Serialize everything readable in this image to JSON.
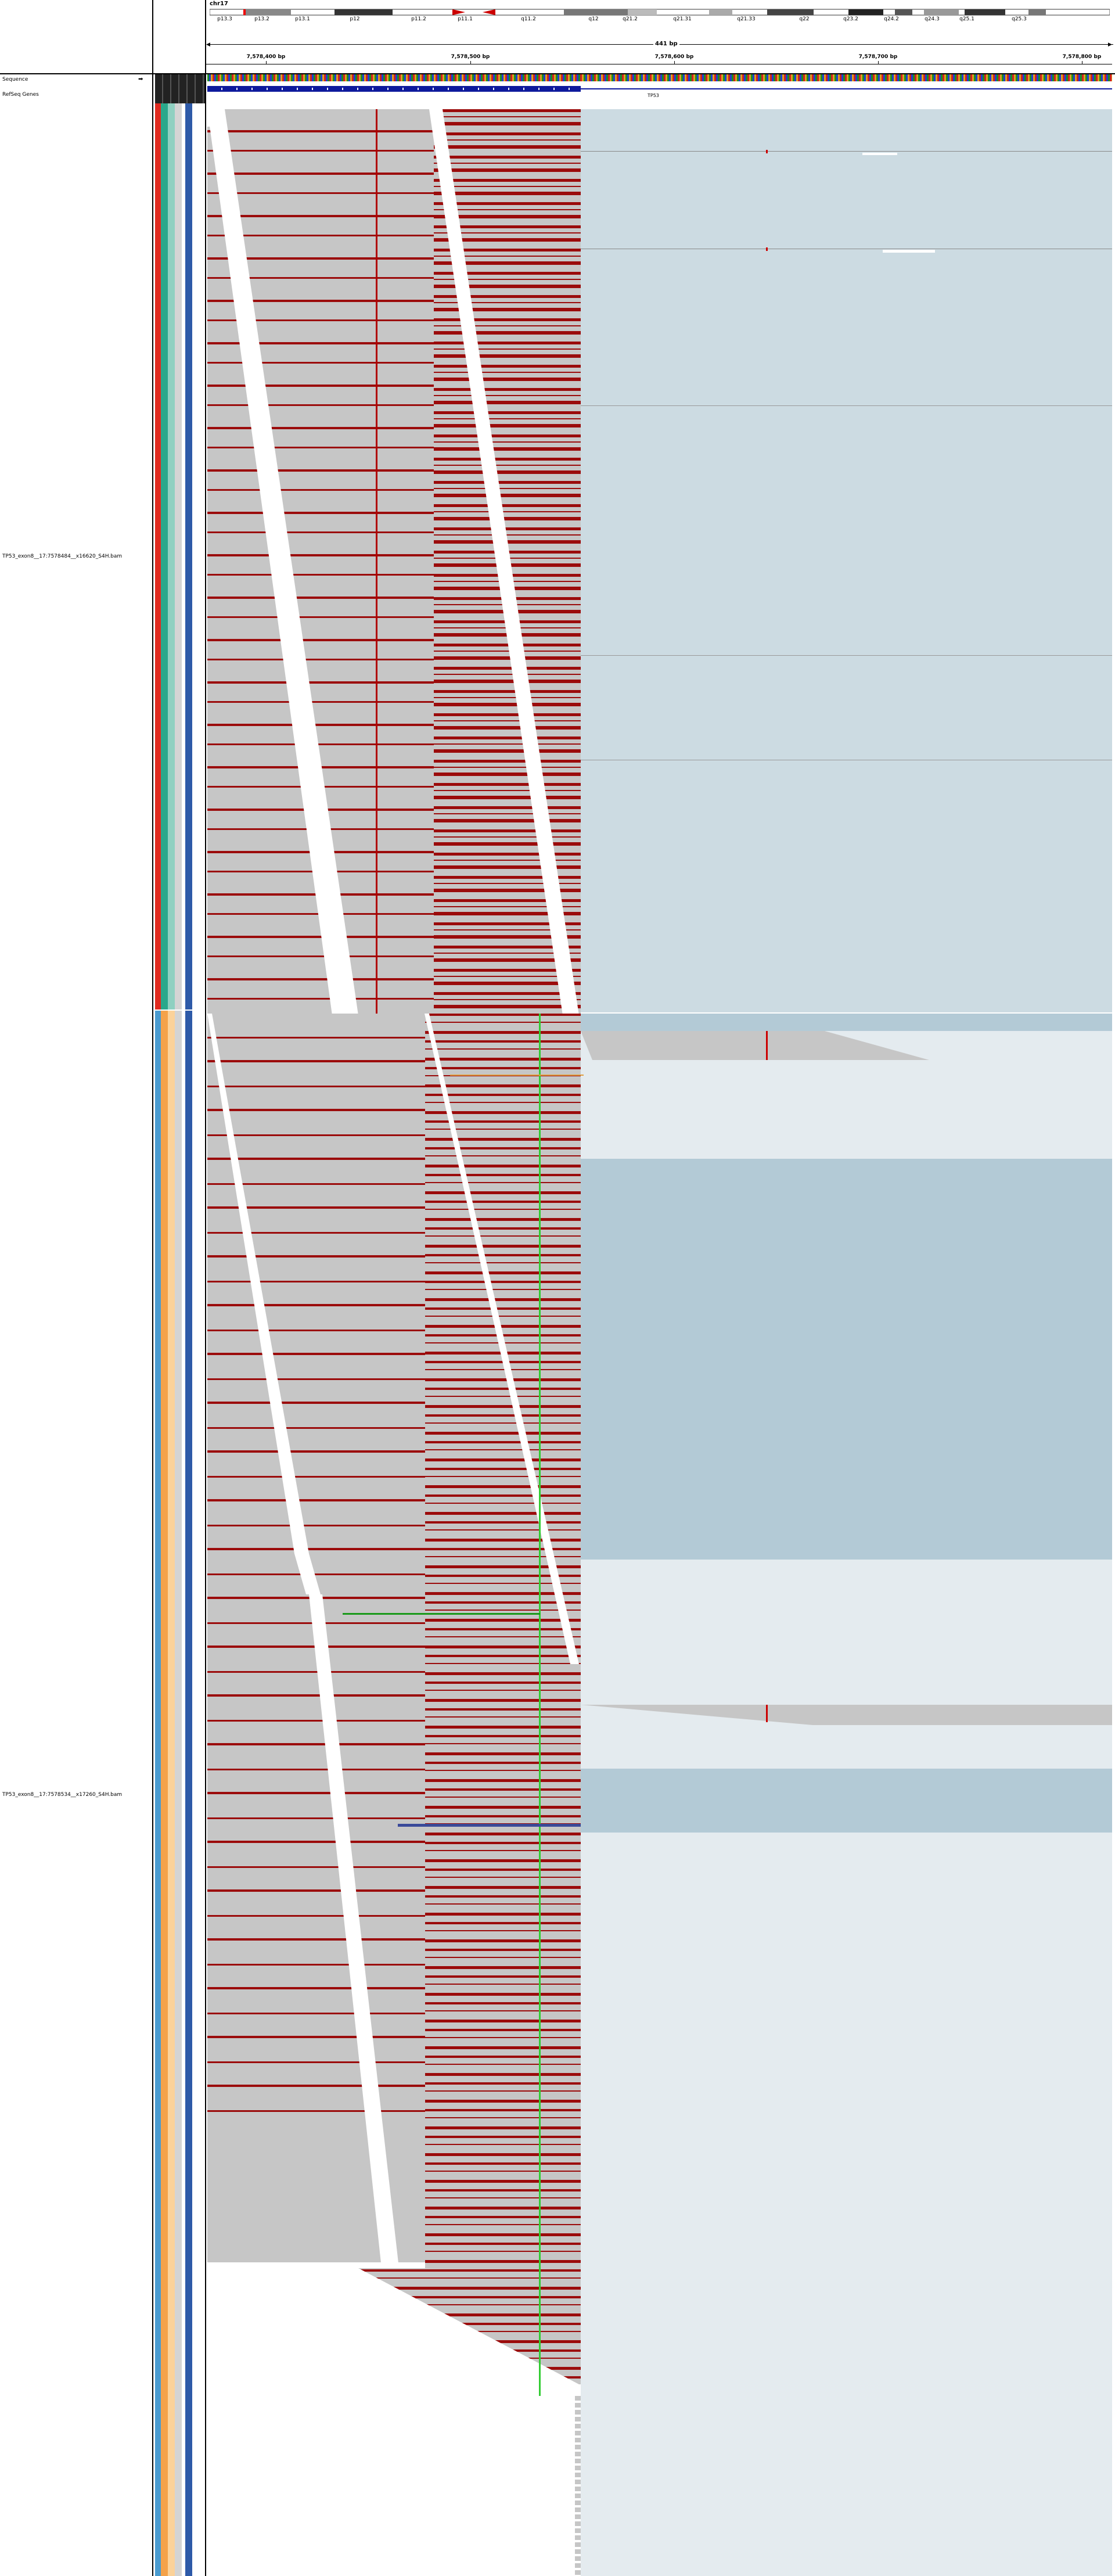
{
  "chromosome": {
    "name": "chr17",
    "bands": [
      "p13.3",
      "p13.2",
      "p13.1",
      "p12",
      "p11.2",
      "p11.1",
      "q11.2",
      "q12",
      "q21.2",
      "q21.31",
      "q21.33",
      "q22",
      "q23.2",
      "q24.2",
      "q24.3",
      "q25.1",
      "q25.3"
    ]
  },
  "ruler": {
    "span": "441 bp",
    "ticks": [
      "7,578,400 bp",
      "7,578,500 bp",
      "7,578,600 bp",
      "7,578,700 bp",
      "7,578,800 bp"
    ]
  },
  "tracks": {
    "sequence_label": "Sequence",
    "refseq_label": "RefSeq Genes",
    "gene_name": "TP53",
    "bam1_label": "TP53_exon8__17:7578484__x16620_S4H.bam",
    "bam2_label": "TP53_exon8__17:7578534__x17260_S4H.bam"
  },
  "colors": {
    "read_gray": "#c6c6c6",
    "mismatch_red": "#9b0b0b",
    "soft_clip_bg1": "#ccdbe2",
    "soft_clip_bg2": "#b3cad6",
    "empty_bg2": "#e4ebef",
    "gene_blue": "#0e1a9c",
    "insertion_green": "#33cc33",
    "attr_sample1": [
      "#e02b20",
      "#2aa88b",
      "#8fd0c1",
      "#d4d4d4",
      "#2e5aa8"
    ],
    "attr_sample2": [
      "#4a9bd0",
      "#f4a24a",
      "#fbd29a",
      "#d4d4d4",
      "#2e5aa8"
    ]
  }
}
